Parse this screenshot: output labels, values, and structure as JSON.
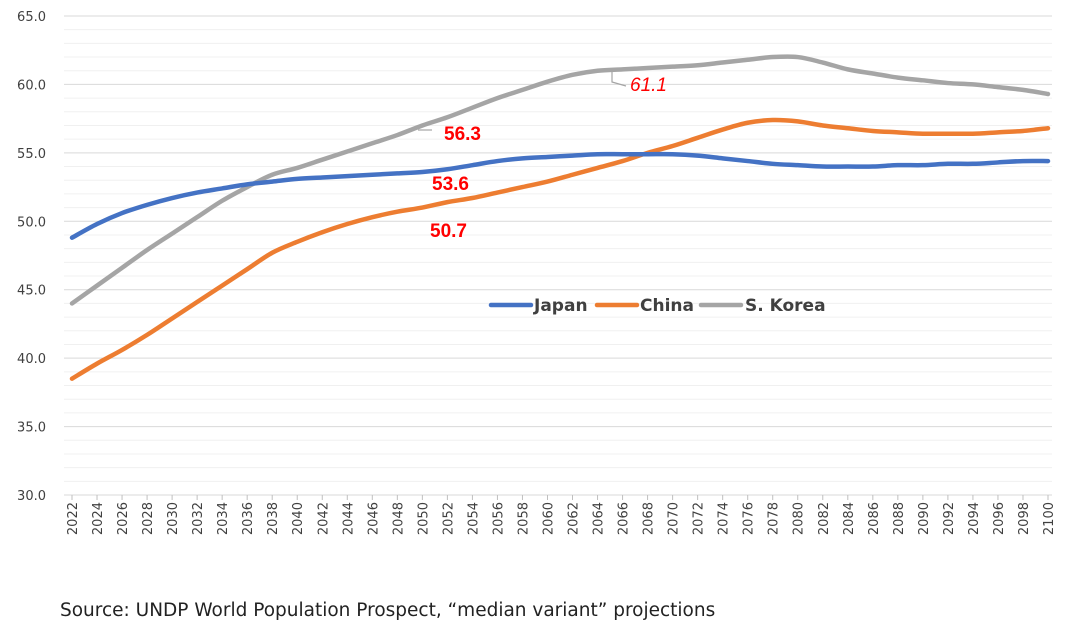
{
  "chart_data": {
    "type": "line",
    "title": "",
    "xlabel": "",
    "ylabel": "",
    "ylim": [
      30,
      65
    ],
    "yticks": [
      "30.0",
      "35.0",
      "40.0",
      "45.0",
      "50.0",
      "55.0",
      "60.0",
      "65.0"
    ],
    "x": [
      2022,
      2024,
      2026,
      2028,
      2030,
      2032,
      2034,
      2036,
      2038,
      2040,
      2042,
      2044,
      2046,
      2048,
      2050,
      2052,
      2054,
      2056,
      2058,
      2060,
      2062,
      2064,
      2066,
      2068,
      2070,
      2072,
      2074,
      2076,
      2078,
      2080,
      2082,
      2084,
      2086,
      2088,
      2090,
      2092,
      2094,
      2096,
      2098,
      2100
    ],
    "series": [
      {
        "name": "Japan",
        "color": "#4472C4",
        "values": [
          48.8,
          49.8,
          50.6,
          51.2,
          51.7,
          52.1,
          52.4,
          52.7,
          52.9,
          53.1,
          53.2,
          53.3,
          53.4,
          53.5,
          53.6,
          53.8,
          54.1,
          54.4,
          54.6,
          54.7,
          54.8,
          54.9,
          54.9,
          54.9,
          54.9,
          54.8,
          54.6,
          54.4,
          54.2,
          54.1,
          54.0,
          54.0,
          54.0,
          54.1,
          54.1,
          54.2,
          54.2,
          54.3,
          54.4,
          54.4
        ]
      },
      {
        "name": "China",
        "color": "#ED7D31",
        "values": [
          38.5,
          39.6,
          40.6,
          41.7,
          42.9,
          44.1,
          45.3,
          46.5,
          47.7,
          48.5,
          49.2,
          49.8,
          50.3,
          50.7,
          51.0,
          51.4,
          51.7,
          52.1,
          52.5,
          52.9,
          53.4,
          53.9,
          54.4,
          55.0,
          55.5,
          56.1,
          56.7,
          57.2,
          57.4,
          57.3,
          57.0,
          56.8,
          56.6,
          56.5,
          56.4,
          56.4,
          56.4,
          56.5,
          56.6,
          56.8
        ]
      },
      {
        "name": "S. Korea",
        "color": "#A5A5A5",
        "values": [
          44.0,
          45.3,
          46.6,
          47.9,
          49.1,
          50.3,
          51.5,
          52.5,
          53.4,
          53.9,
          54.5,
          55.1,
          55.7,
          56.3,
          57.0,
          57.6,
          58.3,
          59.0,
          59.6,
          60.2,
          60.7,
          61.0,
          61.1,
          61.2,
          61.3,
          61.4,
          61.6,
          61.8,
          62.0,
          62.0,
          61.6,
          61.1,
          60.8,
          60.5,
          60.3,
          60.1,
          60.0,
          59.8,
          59.6,
          59.3
        ]
      }
    ],
    "legend": {
      "position": "center",
      "entries": [
        "Japan",
        "China",
        "S. Korea"
      ]
    },
    "annotations": [
      {
        "text": "56.3",
        "color": "#FF0000",
        "style": "bold"
      },
      {
        "text": "53.6",
        "color": "#FF0000",
        "style": "bold"
      },
      {
        "text": "50.7",
        "color": "#FF0000",
        "style": "bold"
      },
      {
        "text": "61.1",
        "color": "#FF0000",
        "style": "italic"
      }
    ],
    "gridlines": true
  },
  "source_note": "Source: UNDP World Population Prospect, “median variant” projections"
}
